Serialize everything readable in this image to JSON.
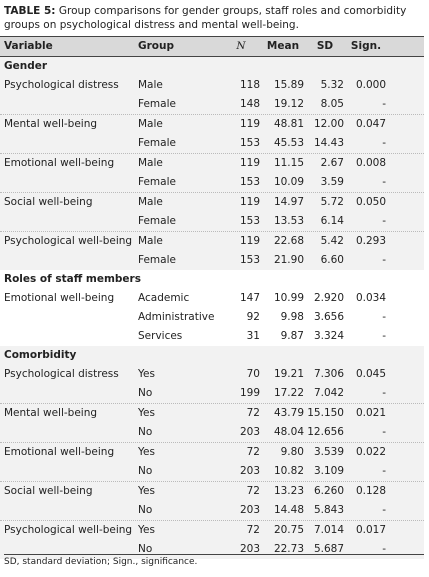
{
  "title": {
    "label": "TABLE 5:",
    "text": "Group comparisons for gender groups, staff roles and comorbidity groups on psychological distress and mental well-being."
  },
  "table": {
    "columns": [
      "Variable",
      "Group",
      "N",
      "Mean",
      "SD",
      "Sign."
    ],
    "sections": [
      {
        "title": "Gender",
        "rows": [
          {
            "variable": "Psychological distress",
            "group": "Male",
            "n": "118",
            "mean": "15.89",
            "sd": "5.32",
            "sign": "0.000"
          },
          {
            "group": "Female",
            "n": "148",
            "mean": "19.12",
            "sd": "8.05",
            "sign": "-"
          },
          {
            "variable": "Mental well-being",
            "group": "Male",
            "n": "119",
            "mean": "48.81",
            "sd": "12.00",
            "sign": "0.047"
          },
          {
            "group": "Female",
            "n": "153",
            "mean": "45.53",
            "sd": "14.43",
            "sign": "-"
          },
          {
            "variable": "Emotional well-being",
            "group": "Male",
            "n": "119",
            "mean": "11.15",
            "sd": "2.67",
            "sign": "0.008"
          },
          {
            "group": "Female",
            "n": "153",
            "mean": "10.09",
            "sd": "3.59",
            "sign": "-"
          },
          {
            "variable": "Social well-being",
            "group": "Male",
            "n": "119",
            "mean": "14.97",
            "sd": "5.72",
            "sign": "0.050"
          },
          {
            "group": "Female",
            "n": "153",
            "mean": "13.53",
            "sd": "6.14",
            "sign": "-"
          },
          {
            "variable": "Psychological well-being",
            "group": "Male",
            "n": "119",
            "mean": "22.68",
            "sd": "5.42",
            "sign": "0.293"
          },
          {
            "group": "Female",
            "n": "153",
            "mean": "21.90",
            "sd": "6.60",
            "sign": "-"
          }
        ]
      },
      {
        "title": "Roles of staff members",
        "rows": [
          {
            "variable": "Emotional well-being",
            "group": "Academic",
            "n": "147",
            "mean": "10.99",
            "sd": "2.920",
            "sign": "0.034"
          },
          {
            "group": "Administrative",
            "n": "92",
            "mean": "9.98",
            "sd": "3.656",
            "sign": "-"
          },
          {
            "group": "Services",
            "n": "31",
            "mean": "9.87",
            "sd": "3.324",
            "sign": "-"
          }
        ]
      },
      {
        "title": "Comorbidity",
        "rows": [
          {
            "variable": "Psychological distress",
            "group": "Yes",
            "n": "70",
            "mean": "19.21",
            "sd": "7.306",
            "sign": "0.045"
          },
          {
            "group": "No",
            "n": "199",
            "mean": "17.22",
            "sd": "7.042",
            "sign": "-"
          },
          {
            "variable": "Mental well-being",
            "group": "Yes",
            "n": "72",
            "mean": "43.79",
            "sd": "15.150",
            "sign": "0.021"
          },
          {
            "group": "No",
            "n": "203",
            "mean": "48.04",
            "sd": "12.656",
            "sign": "-"
          },
          {
            "variable": "Emotional well-being",
            "group": "Yes",
            "n": "72",
            "mean": "9.80",
            "sd": "3.539",
            "sign": "0.022"
          },
          {
            "group": "No",
            "n": "203",
            "mean": "10.82",
            "sd": "3.109",
            "sign": "-"
          },
          {
            "variable": "Social well-being",
            "group": "Yes",
            "n": "72",
            "mean": "13.23",
            "sd": "6.260",
            "sign": "0.128"
          },
          {
            "group": "No",
            "n": "203",
            "mean": "14.48",
            "sd": "5.843",
            "sign": "-"
          },
          {
            "variable": "Psychological well-being",
            "group": "Yes",
            "n": "72",
            "mean": "20.75",
            "sd": "7.014",
            "sign": "0.017"
          },
          {
            "group": "No",
            "n": "203",
            "mean": "22.73",
            "sd": "5.687",
            "sign": "-"
          }
        ]
      }
    ]
  },
  "footnote": "SD, standard deviation; Sign., significance."
}
